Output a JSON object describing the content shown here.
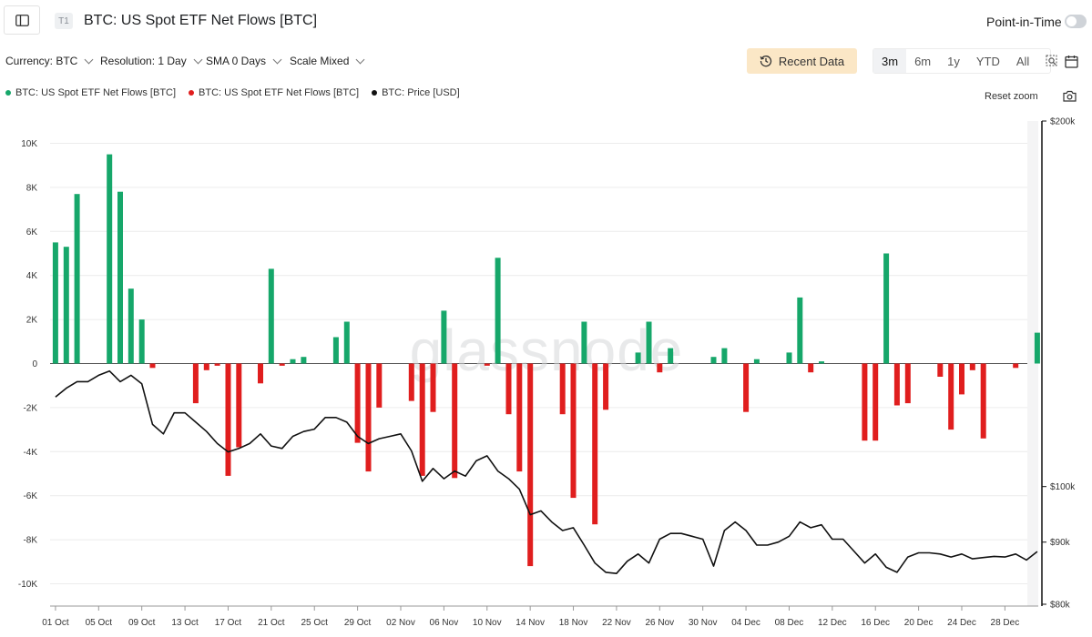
{
  "header": {
    "badge": "T1",
    "title": "BTC: US Spot ETF Net Flows [BTC]",
    "point_in_time_label": "Point-in-Time"
  },
  "toolbar": {
    "currency": "Currency: BTC",
    "resolution": "Resolution: 1 Day",
    "sma": "SMA 0 Days",
    "scale": "Scale Mixed",
    "recent_data_label": "Recent Data",
    "ranges": [
      "3m",
      "6m",
      "1y",
      "YTD",
      "All"
    ],
    "active_range": "3m"
  },
  "legend": [
    {
      "label": "BTC: US Spot ETF Net Flows [BTC]",
      "color": "#16a76a"
    },
    {
      "label": "BTC: US Spot ETF Net Flows [BTC]",
      "color": "#e01e1e"
    },
    {
      "label": "BTC: Price [USD]",
      "color": "#111111"
    }
  ],
  "reset_zoom_label": "Reset zoom",
  "watermark": "glassnode",
  "colors": {
    "positive": "#16a76a",
    "negative": "#e01e1e",
    "price": "#111111",
    "grid": "#ececec"
  },
  "chart_data": {
    "type": "bar",
    "x_start": "2025-10-01",
    "x_tick_labels": [
      "01 Oct",
      "05 Oct",
      "09 Oct",
      "13 Oct",
      "17 Oct",
      "21 Oct",
      "25 Oct",
      "29 Oct",
      "02 Nov",
      "06 Nov",
      "10 Nov",
      "14 Nov",
      "18 Nov",
      "22 Nov",
      "26 Nov",
      "30 Nov",
      "04 Dec",
      "08 Dec",
      "12 Dec",
      "16 Dec",
      "20 Dec",
      "24 Dec",
      "28 Dec"
    ],
    "y_left": {
      "ticks": [
        "10K",
        "8K",
        "6K",
        "4K",
        "2K",
        "0",
        "-2K",
        "-4K",
        "-6K",
        "-8K",
        "-10K"
      ],
      "min": -11000,
      "max": 10500
    },
    "y_right": {
      "ticks": [
        "$200k",
        "$100k",
        "$90k",
        "$80k"
      ],
      "values": [
        200000,
        100000,
        90000,
        80000
      ],
      "scale": "log",
      "min": 80000,
      "max": 200000
    },
    "series": [
      {
        "name": "BTC: US Spot ETF Net Flows [BTC]",
        "type": "bar",
        "x": [
          "2025-10-01",
          "2025-10-02",
          "2025-10-03",
          "2025-10-06",
          "2025-10-07",
          "2025-10-08",
          "2025-10-09",
          "2025-10-10",
          "2025-10-14",
          "2025-10-15",
          "2025-10-16",
          "2025-10-17",
          "2025-10-18",
          "2025-10-20",
          "2025-10-21",
          "2025-10-22",
          "2025-10-23",
          "2025-10-24",
          "2025-10-27",
          "2025-10-28",
          "2025-10-29",
          "2025-10-30",
          "2025-10-31",
          "2025-11-03",
          "2025-11-04",
          "2025-11-05",
          "2025-11-06",
          "2025-11-07",
          "2025-11-10",
          "2025-11-11",
          "2025-11-12",
          "2025-11-13",
          "2025-11-14",
          "2025-11-17",
          "2025-11-18",
          "2025-11-19",
          "2025-11-20",
          "2025-11-21",
          "2025-11-24",
          "2025-11-25",
          "2025-11-26",
          "2025-11-27",
          "2025-12-01",
          "2025-12-02",
          "2025-12-03",
          "2025-12-04",
          "2025-12-05",
          "2025-12-08",
          "2025-12-09",
          "2025-12-10",
          "2025-12-11",
          "2025-12-15",
          "2025-12-16",
          "2025-12-17",
          "2025-12-18",
          "2025-12-19",
          "2025-12-22",
          "2025-12-23",
          "2025-12-24",
          "2025-12-25",
          "2025-12-26",
          "2025-12-29",
          "2025-12-31"
        ],
        "values": [
          5500,
          5300,
          7700,
          9500,
          7800,
          3400,
          2000,
          -200,
          -1800,
          -300,
          -100,
          -5100,
          -3800,
          -900,
          4300,
          -100,
          200,
          300,
          1200,
          1900,
          -3600,
          -4900,
          -2000,
          -1700,
          -5100,
          -2200,
          2400,
          -5200,
          -100,
          4800,
          -2300,
          -4900,
          -9200,
          -2300,
          -6100,
          1900,
          -7300,
          -2100,
          500,
          1900,
          -400,
          700,
          300,
          700,
          0,
          -2200,
          200,
          500,
          3000,
          -400,
          100,
          -3500,
          -3500,
          5000,
          -1900,
          -1800,
          -600,
          -3000,
          -1400,
          -300,
          -3400,
          -200,
          1400
        ]
      },
      {
        "name": "BTC: Price [USD]",
        "type": "line",
        "x": [
          "2025-10-01",
          "2025-10-02",
          "2025-10-03",
          "2025-10-04",
          "2025-10-05",
          "2025-10-06",
          "2025-10-07",
          "2025-10-08",
          "2025-10-09",
          "2025-10-10",
          "2025-10-11",
          "2025-10-12",
          "2025-10-13",
          "2025-10-14",
          "2025-10-15",
          "2025-10-16",
          "2025-10-17",
          "2025-10-18",
          "2025-10-19",
          "2025-10-20",
          "2025-10-21",
          "2025-10-22",
          "2025-10-23",
          "2025-10-24",
          "2025-10-25",
          "2025-10-26",
          "2025-10-27",
          "2025-10-28",
          "2025-10-29",
          "2025-10-30",
          "2025-10-31",
          "2025-11-01",
          "2025-11-02",
          "2025-11-03",
          "2025-11-04",
          "2025-11-05",
          "2025-11-06",
          "2025-11-07",
          "2025-11-08",
          "2025-11-09",
          "2025-11-10",
          "2025-11-11",
          "2025-11-12",
          "2025-11-13",
          "2025-11-14",
          "2025-11-15",
          "2025-11-16",
          "2025-11-17",
          "2025-11-18",
          "2025-11-19",
          "2025-11-20",
          "2025-11-21",
          "2025-11-22",
          "2025-11-23",
          "2025-11-24",
          "2025-11-25",
          "2025-11-26",
          "2025-11-27",
          "2025-11-28",
          "2025-11-29",
          "2025-11-30",
          "2025-12-01",
          "2025-12-02",
          "2025-12-03",
          "2025-12-04",
          "2025-12-05",
          "2025-12-06",
          "2025-12-07",
          "2025-12-08",
          "2025-12-09",
          "2025-12-10",
          "2025-12-11",
          "2025-12-12",
          "2025-12-13",
          "2025-12-14",
          "2025-12-15",
          "2025-12-16",
          "2025-12-17",
          "2025-12-18",
          "2025-12-19",
          "2025-12-20",
          "2025-12-21",
          "2025-12-22",
          "2025-12-23",
          "2025-12-24",
          "2025-12-25",
          "2025-12-26",
          "2025-12-27",
          "2025-12-28",
          "2025-12-29",
          "2025-12-30",
          "2025-12-31"
        ],
        "values": [
          118500,
          120500,
          122000,
          122000,
          123500,
          124500,
          122000,
          123500,
          121500,
          112500,
          110500,
          115000,
          115000,
          113000,
          111000,
          108500,
          106800,
          107500,
          108500,
          110500,
          108000,
          107500,
          110000,
          111000,
          111500,
          114000,
          114000,
          113000,
          110000,
          108500,
          109500,
          110000,
          110500,
          107000,
          101000,
          103500,
          101500,
          103000,
          102000,
          105000,
          106000,
          103000,
          101500,
          99500,
          94800,
          95500,
          93500,
          92000,
          92500,
          89500,
          86500,
          85000,
          84800,
          86800,
          88000,
          86500,
          90500,
          91500,
          91500,
          91000,
          90500,
          86000,
          92000,
          93500,
          92000,
          89500,
          89500,
          90000,
          91000,
          93500,
          92500,
          93000,
          90500,
          90500,
          88500,
          86500,
          88000,
          85800,
          85000,
          87500,
          88200,
          88200,
          88000,
          87500,
          88000,
          87200,
          87400,
          87600,
          87500,
          88000,
          87000,
          88400
        ]
      }
    ],
    "grid": "horizontal",
    "legend_position": "top-left"
  }
}
